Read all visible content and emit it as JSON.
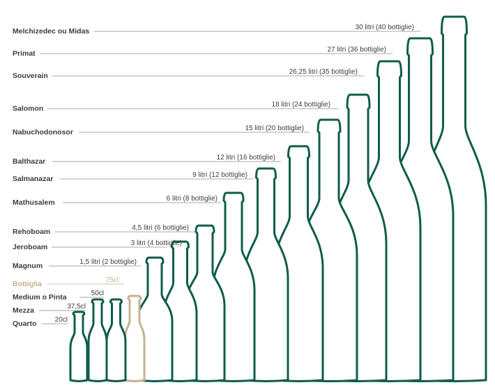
{
  "colors": {
    "standard": "#0f5c4b",
    "highlight": "#c2b38d",
    "label": "#3d3d3d",
    "leader": "#8a8a8a"
  },
  "bottles": [
    {
      "name": "Quarto",
      "volume": "20cl",
      "highlight": false
    },
    {
      "name": "Mezza",
      "volume": "37,5cl",
      "highlight": false
    },
    {
      "name": "Medium o Pinta",
      "volume": "50cl",
      "highlight": false
    },
    {
      "name": "Bottiglia",
      "volume": "75cl",
      "highlight": true
    },
    {
      "name": "Magnum",
      "volume": "1,5 litri (2 bottiglie)",
      "highlight": false
    },
    {
      "name": "Jeroboam",
      "volume": "3 litri (4 bottiglie)",
      "highlight": false
    },
    {
      "name": "Rehoboam",
      "volume": "4,5 litri (6 bottiglie)",
      "highlight": false
    },
    {
      "name": "Mathusalem",
      "volume": "6 litri (8 bottiglie)",
      "highlight": false
    },
    {
      "name": "Salmanazar",
      "volume": "9 litri (12 bottiglie)",
      "highlight": false
    },
    {
      "name": "Balthazar",
      "volume": "12 litri (16 bottiglie)",
      "highlight": false
    },
    {
      "name": "Nabuchodonosor",
      "volume": "15 litri (20 bottiglie)",
      "highlight": false
    },
    {
      "name": "Salomon",
      "volume": "18 litri (24 bottiglie)",
      "highlight": false
    },
    {
      "name": "Souverain",
      "volume": "26,25 litri (35 bottiglie)",
      "highlight": false
    },
    {
      "name": "Primat",
      "volume": "27 litri (36 bottiglie)",
      "highlight": false
    },
    {
      "name": "Melchizedec ou Midas",
      "volume": "30 litri (40 bottiglie)",
      "highlight": false
    }
  ]
}
